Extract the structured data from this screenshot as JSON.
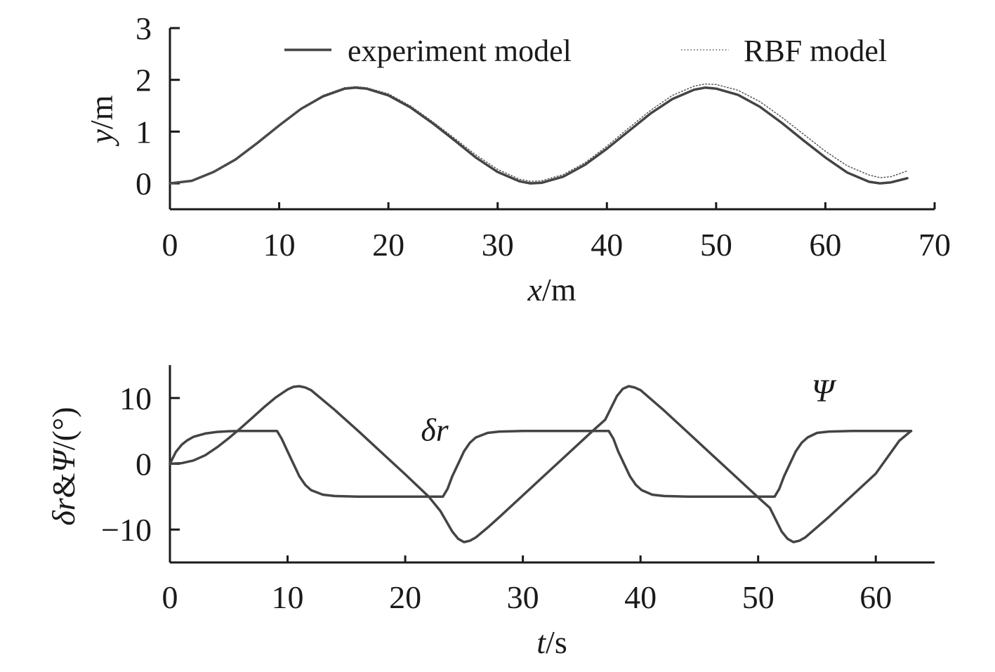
{
  "chart_data": [
    {
      "type": "line",
      "xlabel": "x/m",
      "ylabel": "y/m",
      "xlim": [
        0,
        70
      ],
      "ylim": [
        -0.5,
        3
      ],
      "xticks": [
        "0",
        "10",
        "20",
        "30",
        "40",
        "50",
        "60",
        "70"
      ],
      "yticks": [
        "0",
        "1",
        "2",
        "3"
      ],
      "legend": {
        "placement": "top",
        "entries": [
          "experiment model",
          "RBF model"
        ]
      },
      "series": [
        {
          "name": "experiment model",
          "style": "solid",
          "color": "#444444",
          "x": [
            0,
            2,
            4,
            6,
            8,
            10,
            12,
            14,
            16,
            17,
            18,
            20,
            22,
            24,
            26,
            28,
            30,
            32,
            33,
            34,
            36,
            38,
            40,
            42,
            44,
            46,
            48,
            49,
            50,
            52,
            54,
            56,
            58,
            60,
            62,
            64,
            65,
            66,
            67.5
          ],
          "y": [
            0.0,
            0.05,
            0.22,
            0.46,
            0.78,
            1.12,
            1.44,
            1.68,
            1.83,
            1.85,
            1.83,
            1.7,
            1.47,
            1.17,
            0.84,
            0.5,
            0.22,
            0.04,
            0.0,
            0.01,
            0.13,
            0.36,
            0.67,
            1.01,
            1.35,
            1.63,
            1.81,
            1.85,
            1.83,
            1.71,
            1.48,
            1.17,
            0.83,
            0.5,
            0.21,
            0.03,
            0.0,
            0.02,
            0.1
          ]
        },
        {
          "name": "RBF model",
          "style": "dotted",
          "color": "#555555",
          "x": [
            0,
            2,
            4,
            6,
            8,
            10,
            12,
            14,
            16,
            17,
            18,
            20,
            22,
            24,
            26,
            28,
            30,
            32,
            33,
            34,
            36,
            38,
            40,
            42,
            44,
            46,
            48,
            49,
            50,
            52,
            54,
            56,
            58,
            60,
            62,
            64,
            65,
            66,
            67.5
          ],
          "y": [
            0.0,
            0.05,
            0.22,
            0.47,
            0.79,
            1.13,
            1.45,
            1.7,
            1.85,
            1.87,
            1.85,
            1.73,
            1.5,
            1.2,
            0.88,
            0.55,
            0.27,
            0.08,
            0.04,
            0.05,
            0.17,
            0.4,
            0.72,
            1.07,
            1.41,
            1.7,
            1.88,
            1.92,
            1.91,
            1.8,
            1.58,
            1.28,
            0.95,
            0.62,
            0.34,
            0.16,
            0.11,
            0.13,
            0.24
          ]
        }
      ]
    },
    {
      "type": "line",
      "xlabel": "t/s",
      "ylabel": "δr&Ψ/(°)",
      "xlim": [
        0,
        65
      ],
      "ylim": [
        -15,
        15
      ],
      "xticks": [
        "0",
        "10",
        "20",
        "30",
        "40",
        "50",
        "60"
      ],
      "yticks": [
        "10",
        "0",
        "−10"
      ],
      "annotations": [
        {
          "text": "δr",
          "x": 22.5,
          "y": 3.5
        },
        {
          "text": "Ψ",
          "x": 55.5,
          "y": 9.5
        }
      ],
      "series": [
        {
          "name": "δr",
          "style": "solid",
          "color": "#444444",
          "x": [
            0,
            0.5,
            1,
            1.5,
            2,
            3,
            4,
            5,
            6,
            7,
            8,
            9.1,
            9.5,
            10,
            10.5,
            11,
            11.5,
            12,
            13,
            14,
            16,
            18,
            20,
            23.2,
            23.6,
            24,
            24.5,
            25,
            25.5,
            26,
            27,
            28,
            30,
            32,
            34,
            37.3,
            37.7,
            38.1,
            38.6,
            39.1,
            39.6,
            40.1,
            41,
            42,
            44,
            46,
            48,
            51.4,
            51.8,
            52.2,
            52.7,
            53.2,
            53.7,
            54.2,
            55,
            56,
            58,
            60,
            62,
            63
          ],
          "y": [
            0,
            1.8,
            2.9,
            3.6,
            4.1,
            4.6,
            4.85,
            4.95,
            5,
            5,
            5,
            5,
            3.8,
            1.9,
            0,
            -1.9,
            -3.2,
            -4.0,
            -4.7,
            -4.9,
            -5,
            -5,
            -5,
            -5,
            -3.8,
            -1.9,
            0,
            1.9,
            3.2,
            4.0,
            4.7,
            4.9,
            5,
            5,
            5,
            5,
            3.8,
            1.9,
            0,
            -1.9,
            -3.2,
            -4.0,
            -4.7,
            -4.9,
            -5,
            -5,
            -5,
            -5,
            -3.8,
            -1.9,
            0,
            1.9,
            3.2,
            4.0,
            4.7,
            4.9,
            5,
            5,
            5,
            5
          ]
        },
        {
          "name": "Ψ",
          "style": "solid",
          "color": "#444444",
          "x": [
            0,
            1,
            2,
            3,
            4,
            5,
            6,
            7,
            8,
            9,
            10,
            10.5,
            11,
            11.5,
            12,
            14,
            16,
            18,
            20,
            22,
            23,
            24,
            24.5,
            25,
            25.5,
            26,
            27,
            28,
            30,
            32,
            34,
            36,
            37,
            38,
            38.5,
            39,
            39.5,
            40,
            42,
            44,
            46,
            48,
            50,
            51,
            52,
            52.5,
            53,
            53.5,
            54,
            56,
            58,
            60,
            62,
            63
          ],
          "y": [
            0,
            0.1,
            0.5,
            1.3,
            2.5,
            3.9,
            5.4,
            7.0,
            8.6,
            10.1,
            11.3,
            11.7,
            11.8,
            11.6,
            11.2,
            8.2,
            5.0,
            1.7,
            -1.6,
            -5.0,
            -7.2,
            -10.3,
            -11.4,
            -11.9,
            -11.7,
            -11.2,
            -9.7,
            -8.1,
            -4.8,
            -1.5,
            1.8,
            5.1,
            6.7,
            10.3,
            11.4,
            11.8,
            11.6,
            11.2,
            8.1,
            4.8,
            1.5,
            -1.8,
            -5.1,
            -6.7,
            -10.3,
            -11.4,
            -11.9,
            -11.7,
            -11.2,
            -8.1,
            -4.8,
            -1.5,
            3.5,
            5
          ]
        }
      ]
    }
  ]
}
